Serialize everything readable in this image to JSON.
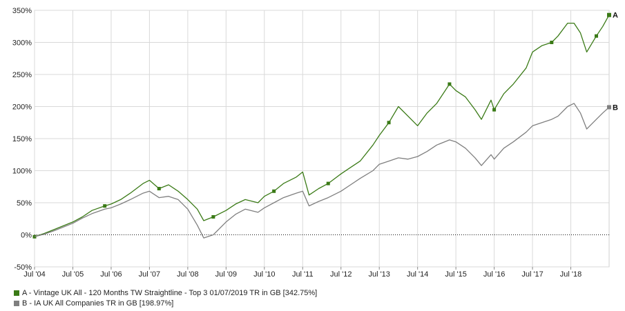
{
  "chart_data": {
    "type": "line",
    "title": "",
    "xlabel": "",
    "ylabel": "",
    "x_range": [
      "2004-07",
      "2019-07"
    ],
    "ylim": [
      -50,
      350
    ],
    "y_ticks": [
      "-50%",
      "0%",
      "50%",
      "100%",
      "150%",
      "200%",
      "250%",
      "300%",
      "350%"
    ],
    "y_tick_values": [
      -50,
      0,
      50,
      100,
      150,
      200,
      250,
      300,
      350
    ],
    "x_ticks": [
      "Jul '04",
      "Jul '05",
      "Jul '06",
      "Jul '07",
      "Jul '08",
      "Jul '09",
      "Jul '10",
      "Jul '11",
      "Jul '12",
      "Jul '13",
      "Jul '14",
      "Jul '15",
      "Jul '16",
      "Jul '17",
      "Jul '18"
    ],
    "x_tick_dates": [
      "2004-07",
      "2005-07",
      "2006-07",
      "2007-07",
      "2008-07",
      "2009-07",
      "2010-07",
      "2011-07",
      "2012-07",
      "2013-07",
      "2014-07",
      "2015-07",
      "2016-07",
      "2017-07",
      "2018-07"
    ],
    "grid": true,
    "legend_position": "bottom-left",
    "series": [
      {
        "key": "A",
        "name": "A - Vintage UK All - 120 Months TW Straightline - Top 3 01/07/2019 TR in GB [342.75%]",
        "end_label": "A",
        "color": "#3a7a16",
        "x": [
          "2004-07",
          "2004-10",
          "2005-01",
          "2005-07",
          "2005-10",
          "2006-01",
          "2006-05",
          "2006-07",
          "2006-10",
          "2007-01",
          "2007-05",
          "2007-07",
          "2007-10",
          "2008-01",
          "2008-04",
          "2008-07",
          "2008-10",
          "2008-12",
          "2009-03",
          "2009-07",
          "2009-10",
          "2010-01",
          "2010-05",
          "2010-07",
          "2010-10",
          "2011-01",
          "2011-05",
          "2011-07",
          "2011-09",
          "2011-12",
          "2012-03",
          "2012-07",
          "2012-10",
          "2013-01",
          "2013-05",
          "2013-07",
          "2013-10",
          "2014-01",
          "2014-04",
          "2014-07",
          "2014-10",
          "2015-01",
          "2015-05",
          "2015-07",
          "2015-10",
          "2016-01",
          "2016-03",
          "2016-06",
          "2016-07",
          "2016-10",
          "2017-01",
          "2017-05",
          "2017-07",
          "2017-10",
          "2018-01",
          "2018-03",
          "2018-06",
          "2018-08",
          "2018-10",
          "2018-12",
          "2019-03",
          "2019-05",
          "2019-07"
        ],
        "values": [
          -3,
          2,
          8,
          20,
          28,
          38,
          45,
          48,
          55,
          65,
          80,
          85,
          72,
          78,
          68,
          55,
          40,
          22,
          28,
          38,
          48,
          55,
          50,
          60,
          68,
          80,
          90,
          98,
          62,
          72,
          80,
          95,
          105,
          115,
          140,
          155,
          175,
          200,
          185,
          170,
          190,
          205,
          235,
          225,
          215,
          195,
          180,
          210,
          195,
          220,
          235,
          260,
          285,
          295,
          300,
          310,
          330,
          330,
          315,
          285,
          310,
          325,
          342.75
        ]
      },
      {
        "key": "B",
        "name": "B - IA UK All Companies TR in GB [198.97%]",
        "end_label": "B",
        "color": "#7f7f7f",
        "x": [
          "2004-07",
          "2004-10",
          "2005-01",
          "2005-07",
          "2005-10",
          "2006-01",
          "2006-05",
          "2006-07",
          "2006-10",
          "2007-01",
          "2007-05",
          "2007-07",
          "2007-10",
          "2008-01",
          "2008-04",
          "2008-07",
          "2008-10",
          "2008-12",
          "2009-03",
          "2009-07",
          "2009-10",
          "2010-01",
          "2010-05",
          "2010-07",
          "2010-10",
          "2011-01",
          "2011-05",
          "2011-07",
          "2011-09",
          "2011-12",
          "2012-03",
          "2012-07",
          "2012-10",
          "2013-01",
          "2013-05",
          "2013-07",
          "2013-10",
          "2014-01",
          "2014-04",
          "2014-07",
          "2014-10",
          "2015-01",
          "2015-05",
          "2015-07",
          "2015-10",
          "2016-01",
          "2016-03",
          "2016-06",
          "2016-07",
          "2016-10",
          "2017-01",
          "2017-05",
          "2017-07",
          "2017-10",
          "2018-01",
          "2018-03",
          "2018-06",
          "2018-08",
          "2018-10",
          "2018-12",
          "2019-03",
          "2019-05",
          "2019-07"
        ],
        "values": [
          -3,
          1,
          6,
          18,
          26,
          33,
          40,
          42,
          48,
          55,
          65,
          68,
          58,
          60,
          55,
          40,
          15,
          -5,
          0,
          20,
          32,
          40,
          35,
          42,
          50,
          58,
          65,
          68,
          45,
          52,
          58,
          68,
          78,
          88,
          100,
          110,
          115,
          120,
          118,
          122,
          130,
          140,
          148,
          145,
          135,
          120,
          108,
          125,
          118,
          135,
          145,
          160,
          170,
          175,
          180,
          185,
          200,
          205,
          190,
          165,
          180,
          190,
          198.97
        ]
      }
    ]
  }
}
